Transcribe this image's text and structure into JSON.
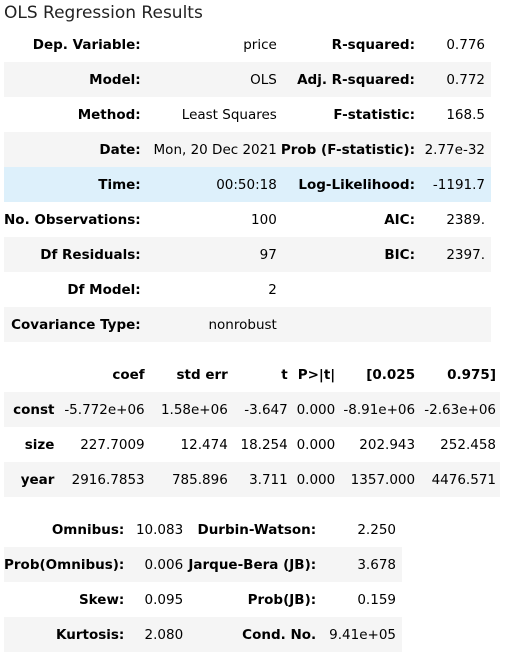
{
  "caption": "OLS Regression Results",
  "summary": [
    {
      "label1": "Dep. Variable:",
      "value1": "price",
      "label2": "R-squared:",
      "value2": "0.776"
    },
    {
      "label1": "Model:",
      "value1": "OLS",
      "label2": "Adj. R-squared:",
      "value2": "0.772"
    },
    {
      "label1": "Method:",
      "value1": "Least Squares",
      "label2": "F-statistic:",
      "value2": "168.5"
    },
    {
      "label1": "Date:",
      "value1": "Mon, 20 Dec 2021",
      "label2": "Prob (F-statistic):",
      "value2": "2.77e-32"
    },
    {
      "label1": "Time:",
      "value1": "00:50:18",
      "label2": "Log-Likelihood:",
      "value2": "-1191.7"
    },
    {
      "label1": "No. Observations:",
      "value1": "100",
      "label2": "AIC:",
      "value2": "2389."
    },
    {
      "label1": "Df Residuals:",
      "value1": "97",
      "label2": "BIC:",
      "value2": "2397."
    },
    {
      "label1": "Df Model:",
      "value1": "2",
      "label2": "",
      "value2": ""
    },
    {
      "label1": "Covariance Type:",
      "value1": "nonrobust",
      "label2": "",
      "value2": ""
    }
  ],
  "coef_table": {
    "headers": [
      "",
      "coef",
      "std err",
      "t",
      "P>|t|",
      "[0.025",
      "0.975]"
    ],
    "rows": [
      {
        "name": "const",
        "coef": "-5.772e+06",
        "std_err": "1.58e+06",
        "t": "-3.647",
        "p": "0.000",
        "low": "-8.91e+06",
        "high": "-2.63e+06"
      },
      {
        "name": "size",
        "coef": "227.7009",
        "std_err": "12.474",
        "t": "18.254",
        "p": "0.000",
        "low": "202.943",
        "high": "252.458"
      },
      {
        "name": "year",
        "coef": "2916.7853",
        "std_err": "785.896",
        "t": "3.711",
        "p": "0.000",
        "low": "1357.000",
        "high": "4476.571"
      }
    ]
  },
  "diagnostics": [
    {
      "label1": "Omnibus:",
      "value1": "10.083",
      "label2": "Durbin-Watson:",
      "value2": "2.250"
    },
    {
      "label1": "Prob(Omnibus):",
      "value1": "0.006",
      "label2": "Jarque-Bera (JB):",
      "value2": "3.678"
    },
    {
      "label1": "Skew:",
      "value1": "0.095",
      "label2": "Prob(JB):",
      "value2": "0.159"
    },
    {
      "label1": "Kurtosis:",
      "value1": "2.080",
      "label2": "Cond. No.",
      "value2": "9.41e+05"
    }
  ]
}
